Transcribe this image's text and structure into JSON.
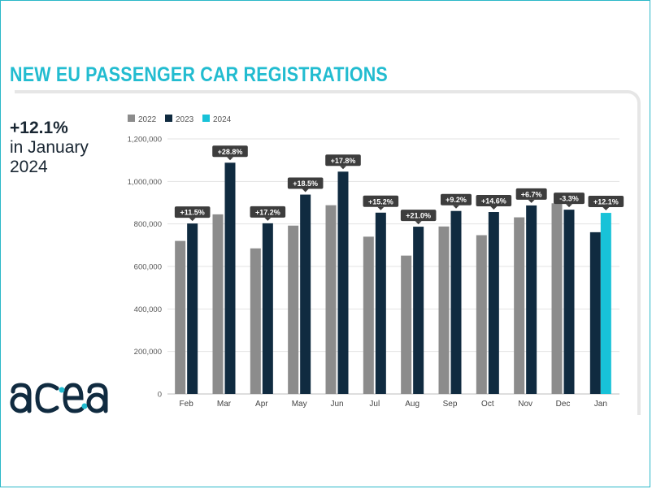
{
  "header": {
    "title": "NEW EU PASSENGER CAR REGISTRATIONS"
  },
  "summary": {
    "value": "+12.1%",
    "line1": "in January",
    "line2": "2024"
  },
  "logo": {
    "text": "acea"
  },
  "colors": {
    "c2022": "#8c8c8c",
    "c2023": "#102b40",
    "c2024": "#18c2d8",
    "accent": "#22bcd0",
    "label_bg": "#3d3d3d"
  },
  "chart_data": {
    "type": "bar",
    "categories": [
      "Feb",
      "Mar",
      "Apr",
      "May",
      "Jun",
      "Jul",
      "Aug",
      "Sep",
      "Oct",
      "Nov",
      "Dec",
      "Jan"
    ],
    "series": [
      {
        "name": "2022",
        "values": [
          720000,
          845000,
          685000,
          792000,
          888000,
          740000,
          651000,
          788000,
          747000,
          831000,
          897000,
          null
        ]
      },
      {
        "name": "2023",
        "values": [
          802000,
          1088000,
          803000,
          938000,
          1046000,
          853000,
          787000,
          861000,
          856000,
          887000,
          867000,
          761000
        ]
      },
      {
        "name": "2024",
        "values": [
          null,
          null,
          null,
          null,
          null,
          null,
          null,
          null,
          null,
          null,
          null,
          852000
        ]
      }
    ],
    "change_labels": [
      "+11.5%",
      "+28.8%",
      "+17.2%",
      "+18.5%",
      "+17.8%",
      "+15.2%",
      "+21.0%",
      "+9.2%",
      "+14.6%",
      "+6.7%",
      "-3.3%",
      "+12.1%"
    ],
    "y_ticks": [
      "0",
      "200,000",
      "400,000",
      "600,000",
      "800,000",
      "1,000,000",
      "1,200,000"
    ],
    "ylim": [
      0,
      1200000
    ],
    "grid": true,
    "legend_position": "top-left"
  }
}
